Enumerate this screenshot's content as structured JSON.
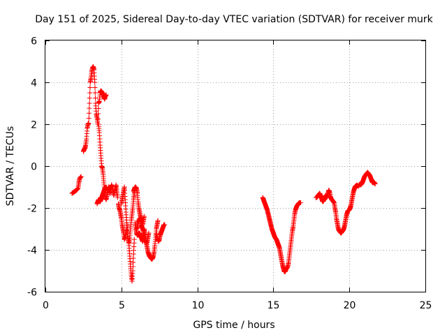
{
  "chart_data": {
    "type": "scatter",
    "title": "Day 151 of 2025, Sidereal Day-to-day VTEC variation (SDTVAR) for receiver murk",
    "xlabel": "GPS time / hours",
    "ylabel": "SDTVAR / TECUs",
    "xlim": [
      0,
      25
    ],
    "ylim": [
      -6,
      6
    ],
    "xticks": [
      0,
      5,
      10,
      15,
      20,
      25
    ],
    "yticks": [
      -6,
      -4,
      -2,
      0,
      2,
      4,
      6
    ],
    "grid": true,
    "marker": "plus",
    "series": [
      {
        "name": "SDTVAR",
        "color": "#ff0000",
        "segments": [
          {
            "x": [
              1.75,
              1.85,
              1.95,
              2.05,
              2.15,
              2.2,
              2.25,
              2.35
            ],
            "y": [
              -1.3,
              -1.25,
              -1.2,
              -1.15,
              -1.05,
              -0.8,
              -0.6,
              -0.5
            ]
          },
          {
            "x": [
              2.5,
              2.55,
              2.6,
              2.65,
              2.7,
              2.75,
              2.8,
              2.85,
              2.9,
              2.95,
              3.0,
              3.05,
              3.1,
              3.15,
              3.2,
              3.25,
              3.3,
              3.35,
              3.4,
              3.45,
              3.5,
              3.55,
              3.6,
              3.65,
              3.7,
              3.75,
              3.8,
              3.85,
              3.9,
              3.95,
              4.0
            ],
            "y": [
              0.7,
              0.8,
              0.85,
              1.0,
              1.3,
              1.8,
              2.0,
              2.05,
              3.0,
              4.0,
              4.2,
              4.5,
              4.7,
              4.75,
              4.6,
              4.0,
              3.0,
              2.5,
              2.3,
              2.0,
              3.0,
              3.1,
              3.5,
              3.6,
              3.55,
              3.5,
              3.4,
              3.3,
              3.2,
              3.35,
              3.4
            ]
          },
          {
            "x": [
              3.5,
              3.55,
              3.6,
              3.65,
              3.7,
              3.75,
              3.8,
              3.85,
              3.9,
              3.95,
              4.0,
              4.05,
              4.1,
              4.15,
              4.2,
              4.25,
              4.3,
              4.35,
              4.4,
              4.45,
              4.5,
              4.55,
              4.6,
              4.65,
              4.7,
              4.75
            ],
            "y": [
              2.0,
              1.6,
              1.0,
              0.5,
              0.0,
              -0.1,
              -0.4,
              -0.8,
              -1.2,
              -1.5,
              -1.6,
              -1.4,
              -1.2,
              -1.0,
              -1.1,
              -1.3,
              -1.2,
              -0.9,
              -1.0,
              -1.2,
              -1.4,
              -1.2,
              -1.1,
              -0.9,
              -1.2,
              -1.5
            ]
          },
          {
            "x": [
              3.4,
              3.45,
              3.5,
              3.55,
              3.6,
              3.65,
              3.7,
              3.75,
              3.8,
              3.85,
              3.9,
              3.95,
              4.0,
              4.05,
              4.1
            ],
            "y": [
              -1.8,
              -1.7,
              -1.6,
              -1.6,
              -1.7,
              -1.6,
              -1.5,
              -1.4,
              -1.3,
              -1.2,
              -1.1,
              -1.0,
              -1.0,
              -1.1,
              -1.2
            ]
          },
          {
            "x": [
              4.8,
              4.85,
              4.9,
              4.95,
              5.0,
              5.05,
              5.1,
              5.15,
              5.2,
              5.25,
              5.3,
              5.35,
              5.4,
              5.45,
              5.5,
              5.55,
              5.6,
              5.65,
              5.7,
              5.75,
              5.8,
              5.85,
              5.9
            ],
            "y": [
              -1.8,
              -2.0,
              -2.1,
              -2.3,
              -2.5,
              -2.8,
              -3.0,
              -3.2,
              -3.5,
              -3.4,
              -3.2,
              -3.0,
              -3.3,
              -3.5,
              -3.7,
              -3.4,
              -3.0,
              -2.6,
              -2.3,
              -2.0,
              -1.6,
              -1.3,
              -1.1
            ]
          },
          {
            "x": [
              5.0,
              5.05,
              5.1,
              5.15,
              5.2,
              5.25,
              5.3,
              5.35,
              5.4
            ],
            "y": [
              -1.8,
              -1.6,
              -1.4,
              -1.2,
              -1.0,
              -1.6,
              -2.2,
              -2.7,
              -3.0
            ]
          },
          {
            "x": [
              5.5,
              5.55,
              5.6,
              5.65,
              5.7,
              5.75,
              5.8,
              5.85
            ],
            "y": [
              -3.8,
              -4.3,
              -4.8,
              -5.2,
              -5.5,
              -5.0,
              -4.2,
              -3.5
            ]
          },
          {
            "x": [
              5.8,
              5.85,
              5.9,
              5.95,
              6.0,
              6.05,
              6.1,
              6.15,
              6.2,
              6.25,
              6.3,
              6.35,
              6.4,
              6.45,
              6.5
            ],
            "y": [
              -1.2,
              -1.1,
              -1.0,
              -1.0,
              -1.1,
              -1.3,
              -1.7,
              -2.0,
              -2.2,
              -2.4,
              -2.5,
              -2.6,
              -2.8,
              -2.6,
              -2.4
            ]
          },
          {
            "x": [
              5.9,
              5.95,
              6.0,
              6.05,
              6.1,
              6.15,
              6.2,
              6.25,
              6.3,
              6.35,
              6.4,
              6.45,
              6.5,
              6.55,
              6.6,
              6.65,
              6.7,
              6.75,
              6.8,
              6.85,
              6.9,
              6.95,
              7.0,
              7.05,
              7.1,
              7.15,
              7.2,
              7.25,
              7.3,
              7.35,
              7.4
            ],
            "y": [
              -2.7,
              -3.0,
              -3.2,
              -3.3,
              -3.3,
              -3.2,
              -3.2,
              -3.3,
              -3.4,
              -3.5,
              -3.6,
              -3.3,
              -3.0,
              -3.2,
              -3.5,
              -3.7,
              -3.9,
              -4.1,
              -4.2,
              -4.3,
              -4.35,
              -4.4,
              -4.45,
              -4.4,
              -4.3,
              -4.1,
              -3.8,
              -3.4,
              -3.0,
              -2.8,
              -2.6
            ]
          },
          {
            "x": [
              6.0,
              6.05,
              6.1,
              6.15,
              6.2,
              6.25,
              6.3,
              6.35,
              6.4,
              6.45,
              6.5,
              6.55,
              6.6,
              6.65,
              6.7,
              6.75,
              6.8
            ],
            "y": [
              -3.0,
              -2.9,
              -2.7,
              -2.6,
              -2.5,
              -2.6,
              -2.8,
              -2.9,
              -3.0,
              -3.1,
              -3.3,
              -3.5,
              -3.6,
              -3.7,
              -3.6,
              -3.4,
              -3.2
            ]
          },
          {
            "x": [
              7.3,
              7.35,
              7.4,
              7.45,
              7.5,
              7.55,
              7.6,
              7.65,
              7.7,
              7.75,
              7.8,
              7.85
            ],
            "y": [
              -3.2,
              -3.4,
              -3.5,
              -3.6,
              -3.5,
              -3.3,
              -3.2,
              -3.1,
              -3.0,
              -2.9,
              -2.8,
              -2.8
            ]
          },
          {
            "x": [
              14.3,
              14.35,
              14.4,
              14.45,
              14.5,
              14.55,
              14.6,
              14.65,
              14.7,
              14.75,
              14.8,
              14.85,
              14.9,
              14.95,
              15.0,
              15.05,
              15.1,
              15.15,
              15.2,
              15.25,
              15.3,
              15.35,
              15.4,
              15.45,
              15.5,
              15.55,
              15.6,
              15.65,
              15.7,
              15.75,
              15.8,
              15.85,
              15.9,
              15.95,
              16.0,
              16.05,
              16.1,
              16.15,
              16.2,
              16.25,
              16.3,
              16.35,
              16.4,
              16.45,
              16.5,
              16.55,
              16.6,
              16.65,
              16.7,
              16.75,
              16.8
            ],
            "y": [
              -1.5,
              -1.6,
              -1.7,
              -1.8,
              -1.9,
              -2.0,
              -2.1,
              -2.25,
              -2.4,
              -2.55,
              -2.7,
              -2.85,
              -3.0,
              -3.1,
              -3.2,
              -3.3,
              -3.4,
              -3.45,
              -3.5,
              -3.6,
              -3.7,
              -3.8,
              -3.9,
              -4.1,
              -4.3,
              -4.5,
              -4.7,
              -4.85,
              -5.0,
              -5.05,
              -5.0,
              -4.9,
              -4.85,
              -4.8,
              -4.6,
              -4.3,
              -4.0,
              -3.7,
              -3.4,
              -3.1,
              -2.9,
              -2.6,
              -2.3,
              -2.1,
              -2.0,
              -1.9,
              -1.85,
              -1.8,
              -1.75,
              -1.75,
              -1.75
            ]
          },
          {
            "x": [
              17.8,
              17.85,
              17.9,
              17.95,
              18.0,
              18.05,
              18.1,
              18.15,
              18.2,
              18.25,
              18.3,
              18.35,
              18.4,
              18.45,
              18.5,
              18.55,
              18.6,
              18.65,
              18.7,
              18.75,
              18.8,
              18.85,
              18.9,
              18.95,
              19.0,
              19.05,
              19.1,
              19.15,
              19.2,
              19.25,
              19.3,
              19.35,
              19.4,
              19.45,
              19.5,
              19.55,
              19.6,
              19.65,
              19.7,
              19.75,
              19.8,
              19.85,
              19.9,
              19.95,
              20.0,
              20.05,
              20.1,
              20.15,
              20.2,
              20.25,
              20.3,
              20.35,
              20.4,
              20.45,
              20.5,
              20.55,
              20.6,
              20.65,
              20.7,
              20.75,
              20.8,
              20.85,
              20.9,
              20.95,
              21.0,
              21.05,
              21.1,
              21.15,
              21.2,
              21.25,
              21.3,
              21.35,
              21.4,
              21.45,
              21.5,
              21.55,
              21.6,
              21.65,
              21.7
            ],
            "y": [
              -1.5,
              -1.5,
              -1.45,
              -1.4,
              -1.35,
              -1.3,
              -1.4,
              -1.5,
              -1.6,
              -1.7,
              -1.65,
              -1.55,
              -1.45,
              -1.4,
              -1.5,
              -1.45,
              -1.3,
              -1.15,
              -1.25,
              -1.45,
              -1.55,
              -1.6,
              -1.65,
              -1.7,
              -1.75,
              -2.0,
              -2.2,
              -2.5,
              -2.7,
              -2.9,
              -3.05,
              -3.1,
              -3.15,
              -3.2,
              -3.15,
              -3.1,
              -3.05,
              -2.95,
              -2.8,
              -2.6,
              -2.4,
              -2.25,
              -2.15,
              -2.1,
              -2.1,
              -2.0,
              -1.9,
              -1.7,
              -1.5,
              -1.3,
              -1.15,
              -1.05,
              -0.95,
              -0.95,
              -0.9,
              -0.95,
              -0.95,
              -0.9,
              -0.85,
              -0.9,
              -0.85,
              -0.8,
              -0.7,
              -0.6,
              -0.5,
              -0.45,
              -0.4,
              -0.35,
              -0.3,
              -0.35,
              -0.4,
              -0.45,
              -0.55,
              -0.65,
              -0.75,
              -0.8,
              -0.75,
              -0.8,
              -0.85
            ]
          }
        ]
      }
    ]
  }
}
